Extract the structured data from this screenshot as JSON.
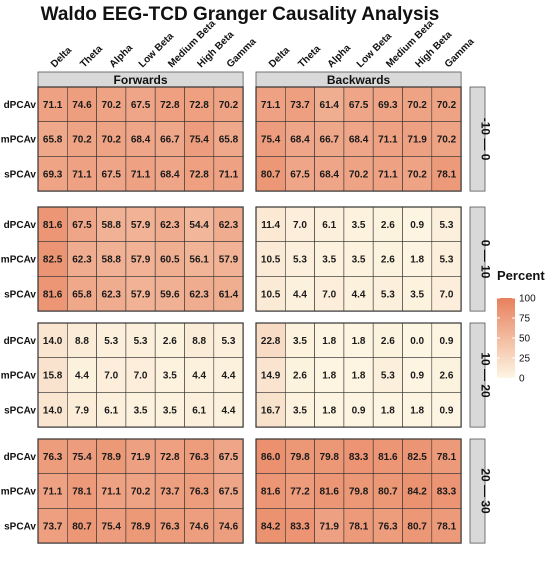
{
  "chart_data": {
    "type": "heatmap",
    "title": "Waldo EEG-TCD Granger Causality Analysis",
    "columns": [
      "Delta",
      "Theta",
      "Alpha",
      "Low Beta",
      "Medium Beta",
      "High Beta",
      "Gamma"
    ],
    "rows": [
      "dPCAv",
      "mPCAv",
      "sPCAv"
    ],
    "directions": [
      "Forwards",
      "Backwards"
    ],
    "lags": [
      "-10 — 0",
      "0 — 10",
      "10 — 20",
      "20 — 30"
    ],
    "legend": {
      "title": "Percent",
      "ticks": [
        100,
        75,
        50,
        25,
        0
      ],
      "min": 0,
      "max": 100,
      "low_color": "#fdf6e3",
      "high_color": "#e8805c"
    },
    "values": {
      "Forwards": [
        [
          [
            71.1,
            74.6,
            70.2,
            67.5,
            72.8,
            72.8,
            70.2
          ],
          [
            65.8,
            70.2,
            70.2,
            68.4,
            66.7,
            75.4,
            65.8
          ],
          [
            69.3,
            71.1,
            67.5,
            71.1,
            68.4,
            72.8,
            71.1
          ]
        ],
        [
          [
            81.6,
            67.5,
            58.8,
            57.9,
            62.3,
            54.4,
            62.3
          ],
          [
            82.5,
            62.3,
            58.8,
            57.9,
            60.5,
            56.1,
            57.9
          ],
          [
            81.6,
            65.8,
            62.3,
            57.9,
            59.6,
            62.3,
            61.4
          ]
        ],
        [
          [
            14.0,
            8.8,
            5.3,
            5.3,
            2.6,
            8.8,
            5.3
          ],
          [
            15.8,
            4.4,
            7.0,
            7.0,
            3.5,
            4.4,
            4.4
          ],
          [
            14.0,
            7.9,
            6.1,
            3.5,
            3.5,
            6.1,
            4.4
          ]
        ],
        [
          [
            76.3,
            75.4,
            78.9,
            71.9,
            72.8,
            76.3,
            67.5
          ],
          [
            71.1,
            78.1,
            71.1,
            70.2,
            73.7,
            76.3,
            67.5
          ],
          [
            73.7,
            80.7,
            75.4,
            78.9,
            76.3,
            74.6,
            74.6
          ]
        ]
      ],
      "Backwards": [
        [
          [
            71.1,
            73.7,
            61.4,
            67.5,
            69.3,
            70.2,
            70.2
          ],
          [
            75.4,
            68.4,
            66.7,
            68.4,
            71.1,
            71.9,
            70.2
          ],
          [
            80.7,
            67.5,
            68.4,
            70.2,
            71.1,
            70.2,
            78.1
          ]
        ],
        [
          [
            11.4,
            7.0,
            6.1,
            3.5,
            2.6,
            0.9,
            5.3
          ],
          [
            10.5,
            5.3,
            3.5,
            3.5,
            2.6,
            1.8,
            5.3
          ],
          [
            10.5,
            4.4,
            7.0,
            4.4,
            5.3,
            3.5,
            7.0
          ]
        ],
        [
          [
            22.8,
            3.5,
            1.8,
            1.8,
            2.6,
            0.0,
            0.9
          ],
          [
            14.9,
            2.6,
            1.8,
            1.8,
            5.3,
            0.9,
            2.6
          ],
          [
            16.7,
            3.5,
            1.8,
            0.9,
            1.8,
            1.8,
            0.9
          ]
        ],
        [
          [
            86.0,
            79.8,
            79.8,
            83.3,
            81.6,
            82.5,
            78.1
          ],
          [
            81.6,
            77.2,
            81.6,
            79.8,
            80.7,
            84.2,
            83.3
          ],
          [
            84.2,
            83.3,
            71.9,
            78.1,
            76.3,
            80.7,
            78.1
          ]
        ]
      ]
    }
  }
}
